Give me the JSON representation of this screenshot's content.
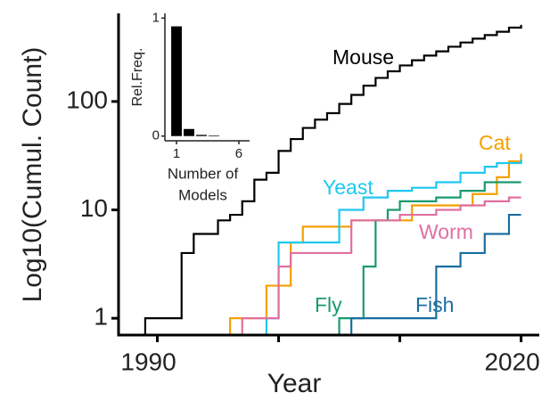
{
  "chart_data": [
    {
      "type": "step",
      "xlabel": "Year",
      "ylabel": "Log10(Cumul. Count)",
      "xlim": [
        1986.8,
        2021.5
      ],
      "ylim": [
        0.7,
        650
      ],
      "log_y": true,
      "xticks": [
        {
          "value": 1990,
          "label": "1990"
        },
        {
          "value": 2000,
          "label": null
        },
        {
          "value": 2010,
          "label": null
        },
        {
          "value": 2020,
          "label": "2020"
        }
      ],
      "yticks": [
        1,
        10,
        100
      ],
      "series": [
        {
          "name": "Mouse",
          "color": "#000000",
          "x": [
            1989,
            1992,
            1993,
            1995,
            1996,
            1997,
            1998,
            1999,
            2000,
            2001,
            2002,
            2003,
            2004,
            2005,
            2006,
            2007,
            2008,
            2009,
            2010,
            2011,
            2012,
            2013,
            2014,
            2015,
            2016,
            2017,
            2018,
            2019,
            2020
          ],
          "values": [
            1,
            4,
            6,
            8,
            9,
            12,
            19,
            22,
            35,
            45,
            57,
            68,
            78,
            95,
            115,
            140,
            165,
            190,
            215,
            240,
            265,
            290,
            320,
            350,
            380,
            410,
            440,
            480,
            510
          ]
        },
        {
          "name": "Cat",
          "color": "#f5a000",
          "x": [
            1996,
            1999,
            2001,
            2002,
            2006,
            2011,
            2016,
            2018,
            2019,
            2020
          ],
          "values": [
            1,
            2,
            5,
            7,
            8,
            11,
            14,
            20,
            28,
            33
          ]
        },
        {
          "name": "Yeast",
          "color": "#1ec8f0",
          "x": [
            1999,
            2000,
            2005,
            2007,
            2009,
            2011,
            2013,
            2015,
            2017,
            2018,
            2020
          ],
          "values": [
            1,
            5,
            10,
            13,
            15,
            16,
            18,
            22,
            25,
            27,
            29
          ]
        },
        {
          "name": "Fly",
          "color": "#1a9a6e",
          "x": [
            2005,
            2007,
            2008,
            2009,
            2010,
            2013,
            2015,
            2017,
            2020
          ],
          "values": [
            1,
            3,
            8,
            10,
            12,
            13,
            15,
            18,
            18
          ]
        },
        {
          "name": "Worm",
          "color": "#e070a0",
          "x": [
            1997,
            2000,
            2001,
            2006,
            2010,
            2013,
            2015,
            2017,
            2019,
            2020
          ],
          "values": [
            1,
            3,
            4,
            8,
            9,
            10,
            11,
            12,
            13,
            13
          ]
        },
        {
          "name": "Fish",
          "color": "#1a6ea0",
          "x": [
            2006,
            2013,
            2015,
            2017,
            2019,
            2020
          ],
          "values": [
            1,
            3,
            4,
            6,
            9,
            9
          ]
        }
      ]
    },
    {
      "type": "bar",
      "xlabel": [
        "Number of",
        "Models"
      ],
      "ylabel": "Rel.Freq.",
      "xlim": [
        0.07,
        6.86
      ],
      "ylim": [
        -0.04,
        1.04
      ],
      "xticks": [
        1,
        6
      ],
      "yticks": [
        0,
        1
      ],
      "color": "#000000",
      "categories": [
        1,
        2,
        3,
        4,
        5,
        6
      ],
      "values": [
        0.93,
        0.06,
        0.01,
        0.005,
        0,
        0
      ]
    }
  ]
}
